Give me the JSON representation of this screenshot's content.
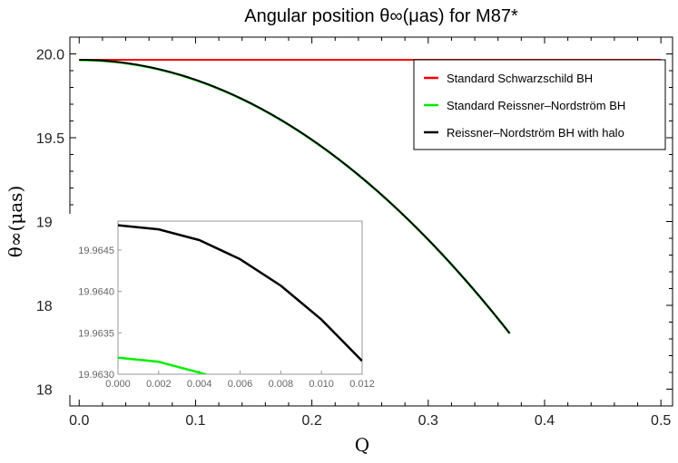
{
  "chart_data": {
    "type": "line",
    "title": "Angular position θ∞(μas) for M87*",
    "xlabel": "Q",
    "ylabel": "θ∞(μas)",
    "xlim": [
      -0.008,
      0.51
    ],
    "ylim": [
      17.9,
      20.1
    ],
    "xticks": [
      "0.0",
      "0.1",
      "0.2",
      "0.3",
      "0.4",
      "0.5"
    ],
    "yticks": [
      "18.0",
      "18.5",
      "19.0",
      "19.5",
      "20.0"
    ],
    "legend_position": "top-right",
    "colors": {
      "schwarzschild": "#ff0000",
      "rn": "#00ee00",
      "rn_halo": "#000000"
    },
    "series": [
      {
        "name": "Standard Schwarzschild BH",
        "x": [
          0.0,
          0.5
        ],
        "y": [
          19.9648,
          19.9648
        ]
      },
      {
        "name": "Standard Reissner–Nordström BH",
        "x": [
          0.0,
          0.1,
          0.2,
          0.3,
          0.37
        ],
        "y": [
          19.9632,
          19.8445,
          19.4887,
          18.8961,
          18.3328
        ]
      },
      {
        "name": "Reissner–Nordström BH with halo",
        "x": [
          0.0,
          0.1,
          0.2,
          0.3,
          0.37
        ],
        "y": [
          19.9648,
          19.846,
          19.49,
          18.897,
          18.333
        ]
      }
    ],
    "inset": {
      "xlim": [
        0.0,
        0.012
      ],
      "ylim": [
        19.963,
        19.96485
      ],
      "xticks": [
        "0.000",
        "0.002",
        "0.004",
        "0.006",
        "0.008",
        "0.010",
        "0.012"
      ],
      "yticks": [
        "19.9630",
        "19.9635",
        "19.9640",
        "19.9645"
      ],
      "series": [
        {
          "name": "Standard Reissner–Nordström BH",
          "x": [
            0.0,
            0.002,
            0.004,
            0.0044
          ],
          "y": [
            19.9632,
            19.96315,
            19.96302,
            19.96299
          ]
        },
        {
          "name": "Reissner–Nordström BH with halo",
          "x": [
            0.0,
            0.002,
            0.004,
            0.006,
            0.008,
            0.01,
            0.012
          ],
          "y": [
            19.9648,
            19.96475,
            19.96462,
            19.96439,
            19.96407,
            19.96366,
            19.96316
          ]
        }
      ]
    }
  }
}
